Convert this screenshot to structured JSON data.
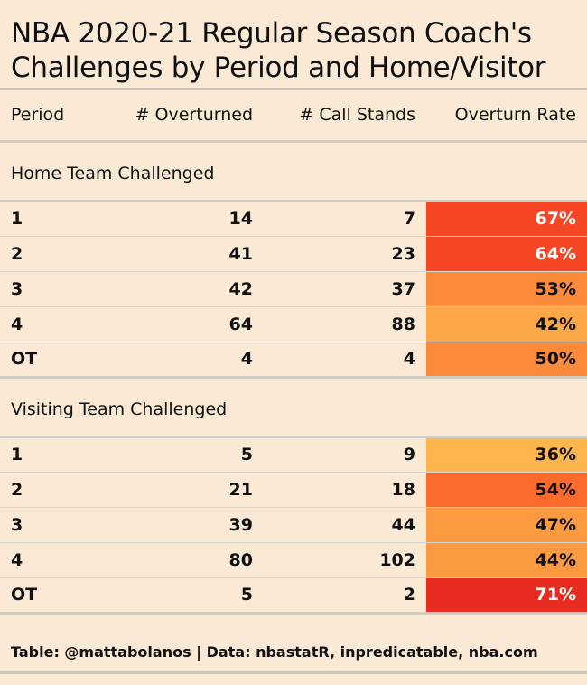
{
  "title_line1": "NBA 2020-21 Regular Season Coach's",
  "title_line2": "Challenges by Period and Home/Visitor",
  "columns": [
    "Period",
    "# Overturned",
    "# Call Stands",
    "Overturn Rate"
  ],
  "footer": "Table: @mattabolanos | Data: nbastatR, inpredicatable, nba.com",
  "colors": {
    "background": "#fae9d5",
    "rate_scale": [
      "#fdb54e",
      "#fda848",
      "#fc9a42",
      "#fb8a3a",
      "#f96c2e",
      "#f85a28",
      "#f64626",
      "#e92c20"
    ]
  },
  "chart_data": {
    "type": "table",
    "title": "NBA 2020-21 Regular Season Coach's Challenges by Period and Home/Visitor",
    "groups": [
      {
        "name": "Home Team Challenged",
        "rows": [
          {
            "period": "1",
            "overturned": 14,
            "call_stands": 7,
            "rate": "67%",
            "rate_value": 0.67
          },
          {
            "period": "2",
            "overturned": 41,
            "call_stands": 23,
            "rate": "64%",
            "rate_value": 0.64
          },
          {
            "period": "3",
            "overturned": 42,
            "call_stands": 37,
            "rate": "53%",
            "rate_value": 0.53
          },
          {
            "period": "4",
            "overturned": 64,
            "call_stands": 88,
            "rate": "42%",
            "rate_value": 0.42
          },
          {
            "period": "OT",
            "overturned": 4,
            "call_stands": 4,
            "rate": "50%",
            "rate_value": 0.5
          }
        ]
      },
      {
        "name": "Visiting Team Challenged",
        "rows": [
          {
            "period": "1",
            "overturned": 5,
            "call_stands": 9,
            "rate": "36%",
            "rate_value": 0.36
          },
          {
            "period": "2",
            "overturned": 21,
            "call_stands": 18,
            "rate": "54%",
            "rate_value": 0.54
          },
          {
            "period": "3",
            "overturned": 39,
            "call_stands": 44,
            "rate": "47%",
            "rate_value": 0.47
          },
          {
            "period": "4",
            "overturned": 80,
            "call_stands": 102,
            "rate": "44%",
            "rate_value": 0.44
          },
          {
            "period": "OT",
            "overturned": 5,
            "call_stands": 2,
            "rate": "71%",
            "rate_value": 0.71
          }
        ]
      }
    ]
  }
}
